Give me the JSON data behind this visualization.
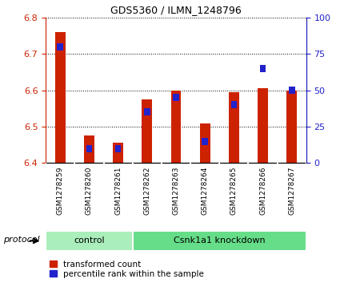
{
  "title": "GDS5360 / ILMN_1248796",
  "samples": [
    "GSM1278259",
    "GSM1278260",
    "GSM1278261",
    "GSM1278262",
    "GSM1278263",
    "GSM1278264",
    "GSM1278265",
    "GSM1278266",
    "GSM1278267"
  ],
  "transformed_counts": [
    6.76,
    6.475,
    6.455,
    6.575,
    6.598,
    6.508,
    6.595,
    6.605,
    6.6
  ],
  "percentile_ranks": [
    80,
    10,
    10,
    35,
    45,
    15,
    40,
    65,
    50
  ],
  "ylim_left": [
    6.4,
    6.8
  ],
  "ylim_right": [
    0,
    100
  ],
  "yticks_left": [
    6.4,
    6.5,
    6.6,
    6.7,
    6.8
  ],
  "yticks_right": [
    0,
    25,
    50,
    75,
    100
  ],
  "bar_color_red": "#cc2200",
  "bar_color_blue": "#2222cc",
  "protocol_groups": [
    {
      "label": "control",
      "indices": [
        0,
        1,
        2
      ],
      "color": "#aaeebb"
    },
    {
      "label": "Csnk1a1 knockdown",
      "indices": [
        3,
        4,
        5,
        6,
        7,
        8
      ],
      "color": "#66dd88"
    }
  ],
  "protocol_label": "protocol",
  "legend_red": "transformed count",
  "legend_blue": "percentile rank within the sample",
  "bar_width": 0.35,
  "base_value": 6.4
}
